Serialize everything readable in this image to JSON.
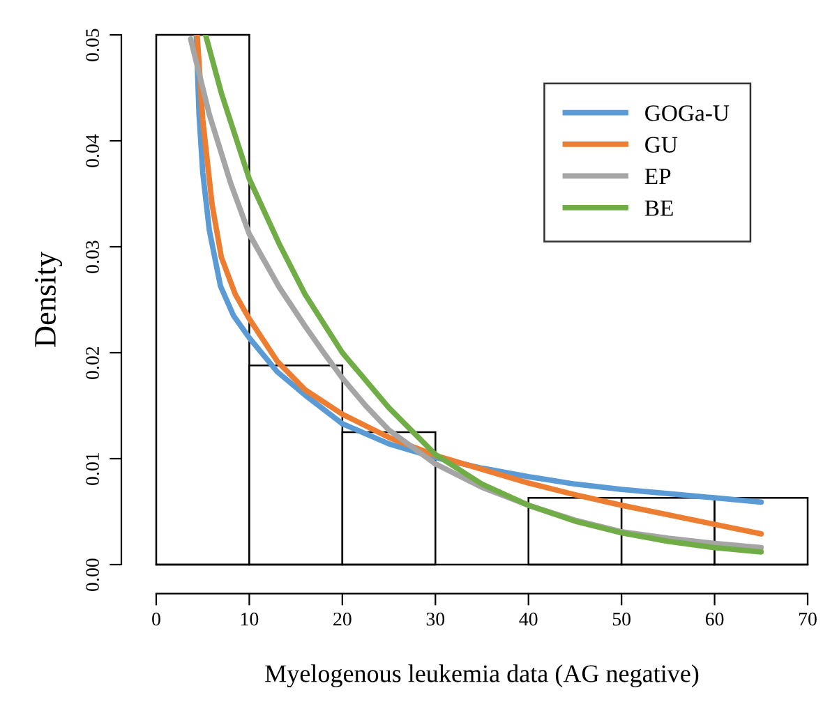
{
  "chart_data": {
    "type": "histogram",
    "xlabel": "Myelogenous leukemia data (AG negative)",
    "ylabel": "Density",
    "bins": [
      0,
      10,
      20,
      30,
      40,
      50,
      60,
      70
    ],
    "values": [
      0.05,
      0.0188,
      0.0125,
      0,
      0.0063,
      0.0063,
      0.0063
    ],
    "color": "#ffffff",
    "xlim": [
      0,
      70
    ],
    "ylim": [
      0,
      0.05
    ],
    "xticks": [
      0,
      10,
      20,
      30,
      40,
      50,
      60,
      70
    ],
    "yticks": [
      {
        "value": 0,
        "label": "0.00"
      },
      {
        "value": 0.01,
        "label": "0.01"
      },
      {
        "value": 0.02,
        "label": "0.02"
      },
      {
        "value": 0.03,
        "label": "0.03"
      },
      {
        "value": 0.04,
        "label": "0.04"
      },
      {
        "value": 0.05,
        "label": "0.05"
      }
    ],
    "legend": "top right",
    "grid": false,
    "series": [
      {
        "name": "GOGa-U",
        "type": "line",
        "color": "#5b9bd5",
        "x": [
          4.3,
          4.6,
          5,
          5.7,
          6.9,
          8.3,
          10,
          13,
          16,
          20,
          25,
          30,
          35,
          40,
          45,
          50,
          55,
          60,
          65
        ],
        "values": [
          0.05,
          0.0425,
          0.037,
          0.0316,
          0.0263,
          0.0235,
          0.0214,
          0.0182,
          0.016,
          0.0133,
          0.0114,
          0.0101,
          0.0091,
          0.0083,
          0.0076,
          0.0071,
          0.0067,
          0.0063,
          0.0059
        ]
      },
      {
        "name": "GU",
        "type": "line",
        "color": "#ed7d31",
        "x": [
          4.4,
          5,
          6,
          7,
          8.5,
          10,
          13,
          16,
          20,
          25,
          30,
          35,
          40,
          45,
          50,
          55,
          60,
          65
        ],
        "values": [
          0.05,
          0.042,
          0.034,
          0.029,
          0.0255,
          0.0232,
          0.0192,
          0.0165,
          0.0142,
          0.012,
          0.0103,
          0.009,
          0.0077,
          0.0066,
          0.0056,
          0.0047,
          0.0038,
          0.0029
        ]
      },
      {
        "name": "EP",
        "type": "line",
        "color": "#a5a5a5",
        "x": [
          3.7,
          5.7,
          8,
          10,
          13.2,
          16,
          18,
          20,
          22.5,
          25,
          30,
          35,
          40,
          45,
          50,
          55,
          60,
          65
        ],
        "values": [
          0.0496,
          0.0425,
          0.036,
          0.0312,
          0.0262,
          0.0225,
          0.02,
          0.0176,
          0.015,
          0.0127,
          0.0095,
          0.0073,
          0.0056,
          0.0042,
          0.0031,
          0.0025,
          0.002,
          0.0016
        ]
      },
      {
        "name": "BE",
        "type": "line",
        "color": "#70ad47",
        "x": [
          5.3,
          7,
          10,
          13.2,
          16,
          20,
          25,
          30,
          35,
          40,
          45,
          50,
          55,
          60,
          65
        ],
        "values": [
          0.05,
          0.0445,
          0.0364,
          0.0303,
          0.0255,
          0.02,
          0.0148,
          0.0104,
          0.0076,
          0.0056,
          0.0041,
          0.003,
          0.0022,
          0.0016,
          0.0012
        ]
      }
    ]
  }
}
